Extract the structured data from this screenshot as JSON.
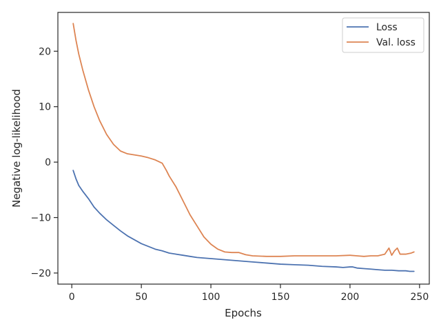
{
  "chart_data": {
    "type": "line",
    "title": "",
    "xlabel": "Epochs",
    "ylabel": "Negative log-likelihood",
    "xlim": [
      -10,
      257
    ],
    "ylim": [
      -22,
      27
    ],
    "xticks": [
      0,
      50,
      100,
      150,
      200,
      250
    ],
    "yticks": [
      -20,
      -10,
      0,
      10,
      20
    ],
    "xtick_labels": [
      "0",
      "50",
      "100",
      "150",
      "200",
      "250"
    ],
    "ytick_labels": [
      "−20",
      "−10",
      "0",
      "10",
      "20"
    ],
    "grid": false,
    "legend_position": "top-right",
    "series": [
      {
        "name": "Loss",
        "color": "#4c72b0",
        "points": [
          [
            1,
            -1.5
          ],
          [
            3,
            -3.0
          ],
          [
            5,
            -4.2
          ],
          [
            8,
            -5.3
          ],
          [
            12,
            -6.6
          ],
          [
            16,
            -8.1
          ],
          [
            20,
            -9.2
          ],
          [
            25,
            -10.4
          ],
          [
            30,
            -11.4
          ],
          [
            35,
            -12.4
          ],
          [
            40,
            -13.3
          ],
          [
            45,
            -14.0
          ],
          [
            50,
            -14.7
          ],
          [
            55,
            -15.2
          ],
          [
            60,
            -15.7
          ],
          [
            65,
            -16.0
          ],
          [
            70,
            -16.4
          ],
          [
            75,
            -16.6
          ],
          [
            80,
            -16.8
          ],
          [
            85,
            -17.0
          ],
          [
            90,
            -17.2
          ],
          [
            100,
            -17.4
          ],
          [
            110,
            -17.6
          ],
          [
            120,
            -17.8
          ],
          [
            130,
            -18.0
          ],
          [
            140,
            -18.2
          ],
          [
            150,
            -18.4
          ],
          [
            160,
            -18.5
          ],
          [
            170,
            -18.6
          ],
          [
            180,
            -18.8
          ],
          [
            190,
            -18.9
          ],
          [
            195,
            -19.0
          ],
          [
            200,
            -18.9
          ],
          [
            202,
            -18.9
          ],
          [
            205,
            -19.1
          ],
          [
            210,
            -19.2
          ],
          [
            215,
            -19.3
          ],
          [
            220,
            -19.4
          ],
          [
            225,
            -19.5
          ],
          [
            230,
            -19.5
          ],
          [
            235,
            -19.6
          ],
          [
            240,
            -19.6
          ],
          [
            243,
            -19.7
          ],
          [
            246,
            -19.7
          ]
        ]
      },
      {
        "name": "Val. loss",
        "color": "#dd8452",
        "points": [
          [
            1,
            25.0
          ],
          [
            3,
            22.0
          ],
          [
            5,
            19.5
          ],
          [
            8,
            16.5
          ],
          [
            12,
            13.0
          ],
          [
            16,
            10.0
          ],
          [
            20,
            7.5
          ],
          [
            25,
            5.0
          ],
          [
            30,
            3.2
          ],
          [
            35,
            2.0
          ],
          [
            40,
            1.5
          ],
          [
            45,
            1.3
          ],
          [
            50,
            1.1
          ],
          [
            55,
            0.8
          ],
          [
            60,
            0.4
          ],
          [
            65,
            -0.2
          ],
          [
            68,
            -1.5
          ],
          [
            70,
            -2.5
          ],
          [
            75,
            -4.5
          ],
          [
            80,
            -7.0
          ],
          [
            85,
            -9.5
          ],
          [
            90,
            -11.5
          ],
          [
            95,
            -13.5
          ],
          [
            100,
            -14.8
          ],
          [
            105,
            -15.7
          ],
          [
            110,
            -16.2
          ],
          [
            115,
            -16.3
          ],
          [
            120,
            -16.3
          ],
          [
            125,
            -16.7
          ],
          [
            130,
            -16.9
          ],
          [
            140,
            -17.0
          ],
          [
            150,
            -17.0
          ],
          [
            160,
            -16.9
          ],
          [
            170,
            -16.9
          ],
          [
            180,
            -16.9
          ],
          [
            190,
            -16.9
          ],
          [
            200,
            -16.8
          ],
          [
            205,
            -16.9
          ],
          [
            210,
            -17.0
          ],
          [
            215,
            -16.9
          ],
          [
            220,
            -16.9
          ],
          [
            225,
            -16.6
          ],
          [
            228,
            -15.5
          ],
          [
            230,
            -16.8
          ],
          [
            232,
            -16.0
          ],
          [
            234,
            -15.5
          ],
          [
            236,
            -16.6
          ],
          [
            240,
            -16.6
          ],
          [
            244,
            -16.4
          ],
          [
            246,
            -16.2
          ]
        ]
      }
    ]
  }
}
